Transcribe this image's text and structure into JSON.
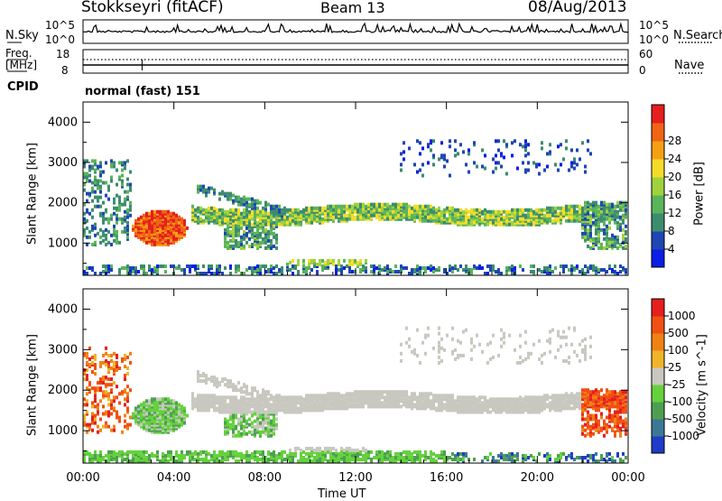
{
  "header": {
    "station": "Stokkseyri (fitACF)",
    "beam": "Beam 13",
    "date": "08/Aug/2013"
  },
  "top_panels": {
    "nsky_label": "N.Sky",
    "nsearch_label": "N.Search",
    "noise_ticks_left": [
      "10^5",
      "10^0"
    ],
    "noise_ticks_right": [
      "10^5",
      "10^0"
    ],
    "freq_label_line1": "Freq.",
    "freq_label_line2": "[MHz]",
    "freq_ticks": [
      "18",
      "8"
    ],
    "nave_label": "Nave",
    "nave_ticks": [
      "60",
      "0"
    ],
    "cpid_label": "CPID",
    "cpid_value": "normal (fast) 151"
  },
  "chart_data": [
    {
      "type": "heatmap",
      "title": "",
      "ylabel": "Slant Range [km]",
      "xlabel": "Time UT",
      "xticks": [
        "00:00",
        "04:00",
        "08:00",
        "12:00",
        "16:00",
        "20:00",
        "00:00"
      ],
      "yticks": [
        "1000",
        "2000",
        "3000",
        "4000"
      ],
      "xlim": [
        0,
        24
      ],
      "ylim": [
        200,
        4500
      ],
      "colorbar": {
        "label": "Power [dB]",
        "ticks": [
          "4",
          "8",
          "12",
          "16",
          "20",
          "24",
          "28"
        ],
        "colors": [
          "#0a1ee6",
          "#1e46b4",
          "#3c8c6e",
          "#5ab45a",
          "#a0d23c",
          "#f5dc28",
          "#f5a014",
          "#f06414",
          "#e61e1e"
        ]
      },
      "features": [
        {
          "desc": "blob",
          "t": [
            2.2,
            4.6
          ],
          "r": [
            900,
            1750
          ],
          "level": "high"
        },
        {
          "desc": "band",
          "t": [
            4.5,
            24
          ],
          "r": [
            1450,
            1900
          ],
          "level": "medium"
        },
        {
          "desc": "upper scatter",
          "t": [
            14,
            22.5
          ],
          "r": [
            2600,
            3500
          ],
          "level": "low"
        }
      ]
    },
    {
      "type": "heatmap",
      "title": "",
      "ylabel": "Slant Range [km]",
      "xlabel": "Time UT",
      "xticks": [
        "00:00",
        "04:00",
        "08:00",
        "12:00",
        "16:00",
        "20:00",
        "00:00"
      ],
      "yticks": [
        "1000",
        "2000",
        "3000",
        "4000"
      ],
      "xlim": [
        0,
        24
      ],
      "ylim": [
        200,
        4500
      ],
      "colorbar": {
        "label": "Velocity [m s^-1]",
        "ticks": [
          "1000",
          "500",
          "100",
          "25",
          "-25",
          "-100",
          "-500",
          "-1000"
        ],
        "colors": [
          "#1e3cc8",
          "#3c7896",
          "#4ea050",
          "#64d23c",
          "#c8c8c0",
          "#f0b428",
          "#f08214",
          "#f05014",
          "#e61e1e"
        ]
      }
    }
  ],
  "x_axis_title": "Time UT"
}
